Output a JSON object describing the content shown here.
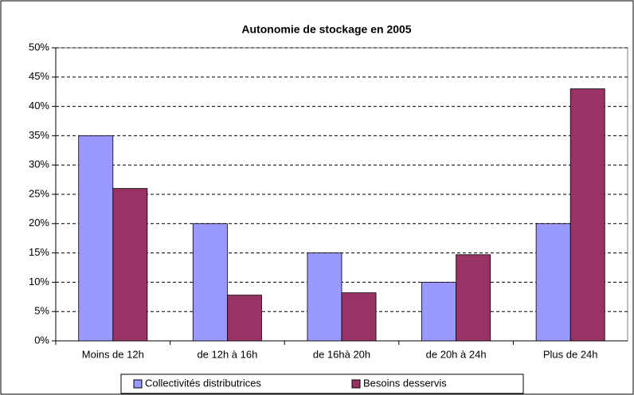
{
  "chart_data": {
    "type": "bar",
    "title": "Autonomie de stockage en 2005",
    "categories": [
      "Moins de 12h",
      "de 12h à 16h",
      "de 16hà 20h",
      "de 20h à 24h",
      "Plus de 24h"
    ],
    "series": [
      {
        "name": "Collectivités distributrices",
        "color": "#9999ff",
        "values": [
          35,
          20,
          15,
          10,
          20
        ]
      },
      {
        "name": "Besoins desservis",
        "color": "#993366",
        "values": [
          26,
          7.8,
          8.2,
          14.7,
          43
        ]
      }
    ],
    "ylim": [
      0,
      50
    ],
    "yticks": [
      {
        "value": 0,
        "label": "0%"
      },
      {
        "value": 5,
        "label": "5%"
      },
      {
        "value": 10,
        "label": "10%"
      },
      {
        "value": 15,
        "label": "15%"
      },
      {
        "value": 20,
        "label": "20%"
      },
      {
        "value": 25,
        "label": "25%"
      },
      {
        "value": 30,
        "label": "30%"
      },
      {
        "value": 35,
        "label": "35%"
      },
      {
        "value": 40,
        "label": "40%"
      },
      {
        "value": 45,
        "label": "45%"
      },
      {
        "value": 50,
        "label": "50%"
      }
    ],
    "grid": true
  }
}
